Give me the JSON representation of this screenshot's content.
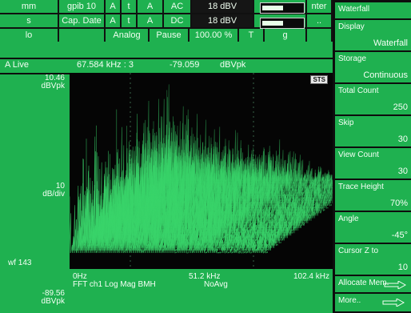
{
  "topbar": {
    "row1": [
      "mm",
      "gpib 10",
      "A",
      "t",
      "A",
      "AC",
      "18 dBV",
      "nter"
    ],
    "row2": [
      "s",
      "Cap. Date",
      "A",
      "t",
      "A",
      "DC",
      "18 dBV",
      ".."
    ],
    "row3": [
      "lo",
      "Analog",
      "Pause",
      "100.00 %",
      "T",
      "g"
    ]
  },
  "trace": {
    "channel": "A Live",
    "freq": "67.584 kHz : 3",
    "level": "-79.059",
    "unit": "dBVpk"
  },
  "yaxis": {
    "top_value": "10.46",
    "top_unit": "dBVpk",
    "mid_value": "10",
    "mid_unit": "dB/div",
    "bottom_value": "-89.56",
    "bottom_unit": "dBVpk"
  },
  "status": {
    "wf_count": "wf 143",
    "sts_badge": "STS"
  },
  "xaxis": {
    "start": "0Hz",
    "center": "51.2 kHz",
    "end": "102.4 kHz",
    "measurement": "FFT ch1 Log Mag BMH",
    "averaging": "NoAvg"
  },
  "menu": {
    "title": "Waterfall",
    "items": [
      {
        "label": "Display",
        "value": "Waterfall"
      },
      {
        "label": "Storage",
        "value": "Continuous"
      },
      {
        "label": "Total Count",
        "value": "250"
      },
      {
        "label": "Skip",
        "value": "30"
      },
      {
        "label": "View Count",
        "value": "30"
      },
      {
        "label": "Trace Height",
        "value": "70%"
      },
      {
        "label": "Angle",
        "value": "-45°"
      },
      {
        "label": "Cursor Z to",
        "value": "10"
      },
      {
        "label": "Allocate Mem.",
        "value": ""
      },
      {
        "label": "More..",
        "value": ""
      }
    ]
  },
  "colors": {
    "panel_green": "#1fb150",
    "trace_green": "#39d46a",
    "background_black": "#050505"
  },
  "icons": {
    "allocate_arrow": "arrow-right-icon",
    "more_arrow": "arrow-right-icon",
    "meter_icon": "level-meter-icon"
  }
}
